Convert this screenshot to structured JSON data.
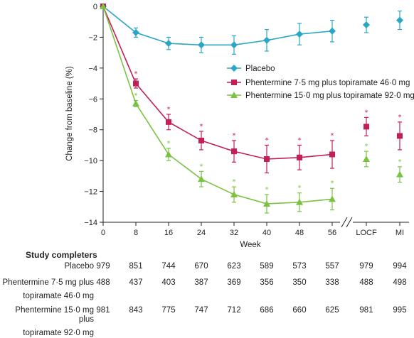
{
  "chart_data": {
    "type": "line",
    "ylabel": "Change from baseline (%)",
    "xlabel": "Week",
    "x_categories": [
      "0",
      "8",
      "16",
      "24",
      "32",
      "40",
      "48",
      "56",
      "LOCF",
      "MI"
    ],
    "ylim": [
      -14,
      0
    ],
    "yticks": [
      0,
      -2,
      -4,
      -6,
      -8,
      -10,
      -12,
      -14
    ],
    "grid": false,
    "legend_position": "right-middle",
    "series": [
      {
        "name": "Placebo",
        "color": "#2aa6c6",
        "marker": "diamond",
        "values": [
          0,
          -1.7,
          -2.4,
          -2.5,
          -2.5,
          -2.2,
          -1.8,
          -1.6
        ],
        "err": [
          0,
          0.3,
          0.4,
          0.5,
          0.6,
          0.7,
          0.7,
          0.7
        ],
        "extra_values": [
          -1.2,
          -0.9
        ],
        "extra_err": [
          0.5,
          0.6
        ],
        "stars": []
      },
      {
        "name": "Phentermine 7·5 mg plus topiramate 46·0 mg",
        "color": "#c41e56",
        "marker": "square",
        "values": [
          0,
          -5.0,
          -7.5,
          -8.7,
          -9.4,
          -9.9,
          -9.8,
          -9.6
        ],
        "err": [
          0,
          0.3,
          0.5,
          0.6,
          0.7,
          0.9,
          0.8,
          0.9
        ],
        "extra_values": [
          -7.8,
          -8.4
        ],
        "extra_err": [
          0.6,
          0.9
        ],
        "stars": [
          "*",
          "*",
          "*",
          "*",
          "*",
          "*",
          "*",
          "*",
          "*"
        ]
      },
      {
        "name": "Phentermine 15·0 mg plus topiramate 92·0 mg",
        "color": "#7cc242",
        "marker": "triangle",
        "values": [
          0,
          -6.3,
          -9.6,
          -11.2,
          -12.2,
          -12.8,
          -12.7,
          -12.5
        ],
        "err": [
          0,
          0.2,
          0.4,
          0.5,
          0.5,
          0.6,
          0.6,
          0.7
        ],
        "extra_values": [
          -9.9,
          -10.9
        ],
        "extra_err": [
          0.5,
          0.5
        ],
        "stars": [
          "*",
          "*",
          "*",
          "*",
          "*",
          "*",
          "*",
          "*",
          "*"
        ]
      }
    ]
  },
  "table": {
    "title": "Study completers",
    "rows": [
      {
        "label": "Placebo",
        "values": [
          "979",
          "851",
          "744",
          "670",
          "623",
          "589",
          "573",
          "557",
          "979",
          "994"
        ]
      },
      {
        "label": "Phentermine 7·5 mg plus\ntopiramate 46·0 mg",
        "values": [
          "488",
          "437",
          "403",
          "387",
          "369",
          "356",
          "350",
          "338",
          "488",
          "498"
        ]
      },
      {
        "label": "Phentermine 15·0 mg plus\ntopiramate 92·0 mg",
        "values": [
          "981",
          "843",
          "775",
          "747",
          "712",
          "686",
          "660",
          "625",
          "981",
          "995"
        ]
      }
    ]
  }
}
